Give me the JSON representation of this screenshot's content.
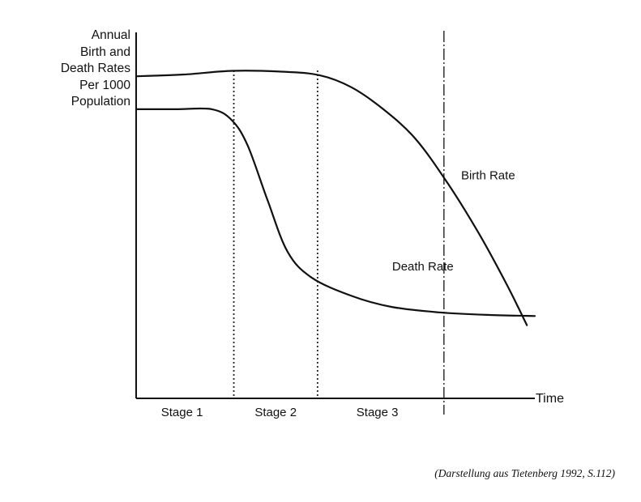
{
  "chart_data": {
    "type": "line",
    "title": "",
    "ylabel_lines": [
      "Annual",
      "Birth and",
      "Death Rates",
      "Per 1000",
      "Population"
    ],
    "xlabel": "Time",
    "xlim": [
      0,
      100
    ],
    "ylim": [
      0,
      100
    ],
    "grid": false,
    "legend": "none",
    "series": [
      {
        "name": "Birth Rate",
        "x": [
          0,
          12,
          24,
          36,
          46,
          54,
          62,
          70,
          78,
          86,
          93,
          98
        ],
        "y": [
          88,
          88.5,
          89.5,
          89.3,
          88.3,
          85,
          79,
          71,
          59,
          45,
          31,
          20
        ],
        "color": "#111111"
      },
      {
        "name": "Death Rate",
        "x": [
          0,
          10,
          19,
          24,
          28,
          33,
          38,
          44,
          54,
          64,
          76,
          88,
          100
        ],
        "y": [
          79,
          79,
          79,
          76,
          69,
          54,
          40,
          33,
          28,
          25,
          23.5,
          22.8,
          22.5
        ],
        "color": "#111111"
      }
    ],
    "stage_dividers": [
      24.5,
      45.5,
      77.2
    ],
    "stages": [
      {
        "label": "Stage 1",
        "x": 11.5
      },
      {
        "label": "Stage 2",
        "x": 35
      },
      {
        "label": "Stage 3",
        "x": 60.5
      }
    ],
    "source_note": "(Darstellung aus Tietenberg 1992, S.112)"
  }
}
